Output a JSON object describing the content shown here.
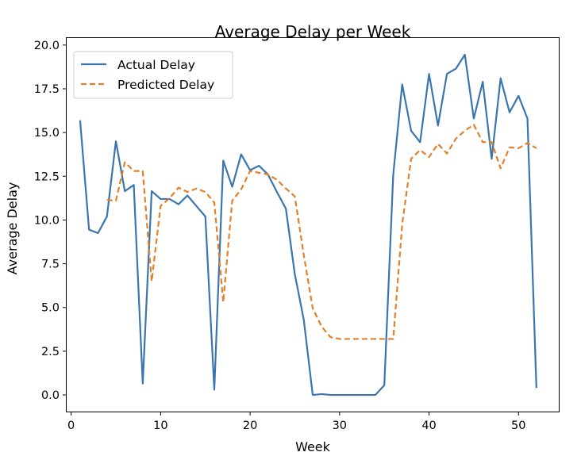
{
  "chart_data": {
    "type": "line",
    "title": "Average Delay per Week",
    "xlabel": "Week",
    "ylabel": "Average Delay",
    "xlim": [
      -0.5,
      54.5
    ],
    "ylim": [
      -0.95,
      20.4
    ],
    "xticks": [
      0,
      10,
      20,
      30,
      40,
      50
    ],
    "yticks": [
      0.0,
      2.5,
      5.0,
      7.5,
      10.0,
      12.5,
      15.0,
      17.5,
      20.0
    ],
    "xtick_labels": [
      "0",
      "10",
      "20",
      "30",
      "40",
      "50"
    ],
    "ytick_labels": [
      "0.0",
      "2.5",
      "5.0",
      "7.5",
      "10.0",
      "12.5",
      "15.0",
      "17.5",
      "20.0"
    ],
    "grid": false,
    "legend_position": "top-left",
    "series": [
      {
        "name": "Actual Delay",
        "style": "solid",
        "color": "#3b75af",
        "x": [
          1,
          2,
          3,
          4,
          5,
          6,
          7,
          8,
          9,
          10,
          11,
          12,
          13,
          14,
          15,
          16,
          17,
          18,
          19,
          20,
          21,
          22,
          23,
          24,
          25,
          26,
          27,
          28,
          29,
          30,
          31,
          32,
          33,
          34,
          35,
          36,
          37,
          38,
          39,
          40,
          41,
          42,
          43,
          44,
          45,
          46,
          47,
          48,
          49,
          50,
          51,
          52
        ],
        "values": [
          15.7,
          9.45,
          9.25,
          10.2,
          14.5,
          11.65,
          12.0,
          0.65,
          11.65,
          11.2,
          11.2,
          10.9,
          11.4,
          10.8,
          10.2,
          0.3,
          13.4,
          11.9,
          13.75,
          12.85,
          13.1,
          12.6,
          11.6,
          10.65,
          6.9,
          4.3,
          0.0,
          0.05,
          0.0,
          0.0,
          0.0,
          0.0,
          0.0,
          0.0,
          0.55,
          12.6,
          17.75,
          15.1,
          14.45,
          18.35,
          15.4,
          18.35,
          18.65,
          19.45,
          15.8,
          17.9,
          13.5,
          18.1,
          16.15,
          17.1,
          15.8,
          0.4
        ]
      },
      {
        "name": "Predicted Delay",
        "style": "dashed",
        "color": "#e1812c",
        "x": [
          4,
          5,
          6,
          7,
          8,
          9,
          10,
          11,
          12,
          13,
          14,
          15,
          16,
          17,
          18,
          19,
          20,
          21,
          22,
          23,
          24,
          25,
          26,
          27,
          28,
          29,
          30,
          31,
          32,
          33,
          34,
          35,
          36,
          37,
          38,
          39,
          40,
          41,
          42,
          43,
          44,
          45,
          46,
          47,
          48,
          49,
          50,
          51,
          52
        ],
        "values": [
          11.15,
          11.1,
          13.3,
          12.8,
          12.8,
          6.5,
          10.8,
          11.25,
          11.85,
          11.6,
          11.8,
          11.6,
          11.0,
          5.3,
          11.1,
          11.75,
          12.8,
          12.7,
          12.6,
          12.3,
          11.8,
          11.35,
          8.0,
          4.95,
          3.9,
          3.3,
          3.2,
          3.2,
          3.2,
          3.2,
          3.2,
          3.2,
          3.2,
          9.75,
          13.5,
          14.0,
          13.6,
          14.35,
          13.8,
          14.65,
          15.1,
          15.45,
          14.45,
          14.45,
          12.95,
          14.15,
          14.1,
          14.4,
          14.1
        ]
      }
    ]
  }
}
